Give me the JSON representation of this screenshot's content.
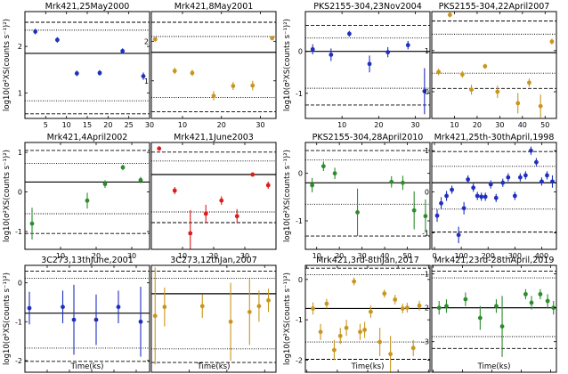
{
  "figure": {
    "xlabel": "Time(ks)",
    "ylabel": "log10(σ²XS(counts s⁻¹)²)"
  },
  "chart_data": [
    {
      "title": "Mrk421,25May2000",
      "type": "scatter",
      "color": "#1f2fbf",
      "xlim": [
        0,
        30
      ],
      "ylim": [
        0.45,
        2.75
      ],
      "xticks": [
        5,
        10,
        15,
        20,
        25,
        30
      ],
      "yticks": [
        1,
        2
      ],
      "solid": [
        1.85
      ],
      "dotted": [
        2.35,
        0.83
      ],
      "dashed": [
        2.52,
        0.55
      ],
      "points": [
        {
          "x": 2.5,
          "y": 2.32,
          "e": 0.06
        },
        {
          "x": 7.8,
          "y": 2.14,
          "e": 0.06
        },
        {
          "x": 12.5,
          "y": 1.42,
          "e": 0.06
        },
        {
          "x": 18,
          "y": 1.43,
          "e": 0.06
        },
        {
          "x": 23.5,
          "y": 1.9,
          "e": 0.06
        },
        {
          "x": 28.5,
          "y": 1.36,
          "e": 0.08
        }
      ]
    },
    {
      "title": "Mrk421,8May2001",
      "type": "scatter",
      "color": "#c8961e",
      "xlim": [
        2,
        34
      ],
      "ylim": [
        0.05,
        2.75
      ],
      "xticks": [
        10,
        20,
        30
      ],
      "yticks": [
        1,
        2
      ],
      "solid": [
        1.72
      ],
      "dotted": [
        2.12,
        0.58
      ],
      "dashed": [
        2.48,
        0.22
      ],
      "points": [
        {
          "x": 3,
          "y": 2.05,
          "e": 0.06
        },
        {
          "x": 8,
          "y": 1.25,
          "e": 0.08
        },
        {
          "x": 12.5,
          "y": 1.2,
          "e": 0.08
        },
        {
          "x": 18,
          "y": 0.62,
          "e": 0.12
        },
        {
          "x": 23,
          "y": 0.87,
          "e": 0.1
        },
        {
          "x": 28,
          "y": 0.88,
          "e": 0.12
        },
        {
          "x": 33,
          "y": 2.08,
          "e": 0.06
        }
      ]
    },
    {
      "title": "PKS2155-304,23Nov2004",
      "type": "scatter",
      "color": "#1f2fbf",
      "xlim": [
        0,
        34
      ],
      "ylim": [
        -1.6,
        0.95
      ],
      "xticks": [
        10,
        20,
        30
      ],
      "yticks": [
        -1,
        0
      ],
      "solid": [
        0.0
      ],
      "dotted": [
        0.32,
        -0.88
      ],
      "dashed": [
        0.62,
        -1.28
      ],
      "points": [
        {
          "x": 2,
          "y": 0.05,
          "e": 0.12
        },
        {
          "x": 7,
          "y": -0.08,
          "e": 0.15
        },
        {
          "x": 12,
          "y": 0.42,
          "e": 0.07
        },
        {
          "x": 17.5,
          "y": -0.3,
          "e": 0.2
        },
        {
          "x": 22.5,
          "y": -0.02,
          "e": 0.12
        },
        {
          "x": 28,
          "y": 0.15,
          "e": 0.1
        },
        {
          "x": 32.5,
          "y": -0.95,
          "e": 0.55
        }
      ]
    },
    {
      "title": "PKS2155-304,22April2007",
      "type": "scatter",
      "color": "#c8961e",
      "xlim": [
        0,
        55
      ],
      "ylim": [
        -0.65,
        1.95
      ],
      "xticks": [
        10,
        20,
        30,
        40,
        50
      ],
      "yticks": [
        0,
        1
      ],
      "solid": [
        0.95
      ],
      "dotted": [
        1.4,
        0.45
      ],
      "dashed": [
        1.72,
        0.08
      ],
      "points": [
        {
          "x": 3,
          "y": 0.48,
          "e": 0.08
        },
        {
          "x": 8,
          "y": 1.87,
          "e": 0.06
        },
        {
          "x": 13.5,
          "y": 0.42,
          "e": 0.08
        },
        {
          "x": 17.5,
          "y": 0.05,
          "e": 0.12
        },
        {
          "x": 23.5,
          "y": 0.62,
          "e": 0.06
        },
        {
          "x": 29,
          "y": 0.0,
          "e": 0.15
        },
        {
          "x": 38,
          "y": -0.28,
          "e": 0.25
        },
        {
          "x": 43,
          "y": 0.22,
          "e": 0.1
        },
        {
          "x": 48,
          "y": -0.35,
          "e": 0.28
        },
        {
          "x": 53,
          "y": 1.22,
          "e": 0.07
        }
      ]
    },
    {
      "title": "Mrk421,4April2002",
      "type": "scatter",
      "color": "#2e8b2e",
      "xlim": [
        0,
        35
      ],
      "ylim": [
        -1.45,
        1.25
      ],
      "xticks": [
        10,
        20,
        30
      ],
      "yticks": [
        -1,
        0,
        1
      ],
      "solid": [
        0.25
      ],
      "dotted": [
        0.72,
        -0.55
      ],
      "dashed": [
        1.05,
        -1.05
      ],
      "points": [
        {
          "x": 2,
          "y": -0.8,
          "e": 0.4
        },
        {
          "x": 17.5,
          "y": -0.22,
          "e": 0.2
        },
        {
          "x": 22.5,
          "y": 0.2,
          "e": 0.1
        },
        {
          "x": 27.5,
          "y": 0.62,
          "e": 0.07
        },
        {
          "x": 32.5,
          "y": 0.3,
          "e": 0.08
        }
      ]
    },
    {
      "title": "Mrk421,1June2003",
      "type": "scatter",
      "color": "#dd1c1c",
      "xlim": [
        0,
        40
      ],
      "ylim": [
        -0.55,
        2.45
      ],
      "xticks": [
        10,
        20,
        30
      ],
      "yticks": [],
      "solid": [
        1.55
      ],
      "dotted": [
        1.93,
        0.5
      ],
      "dashed": [
        2.18,
        0.2
      ],
      "points": [
        {
          "x": 2.5,
          "y": 2.28,
          "e": 0.06
        },
        {
          "x": 7.5,
          "y": 1.1,
          "e": 0.1
        },
        {
          "x": 12.5,
          "y": -0.1,
          "e": 0.65
        },
        {
          "x": 17.5,
          "y": 0.45,
          "e": 0.25
        },
        {
          "x": 22.5,
          "y": 0.82,
          "e": 0.12
        },
        {
          "x": 27.5,
          "y": 0.38,
          "e": 0.2
        },
        {
          "x": 32.5,
          "y": 1.55,
          "e": 0.06
        },
        {
          "x": 37.5,
          "y": 1.25,
          "e": 0.1
        }
      ]
    },
    {
      "title": "PKS2155-304,28April2010",
      "type": "scatter",
      "color": "#2e8b2e",
      "xlim": [
        5,
        60
      ],
      "ylim": [
        -1.6,
        0.65
      ],
      "xticks": [
        10,
        20,
        30,
        40,
        50
      ],
      "yticks": [
        -1,
        0
      ],
      "solid": [
        -0.2
      ],
      "dotted": [
        0.28,
        -0.65
      ],
      "dashed": [
        0.48,
        -1.32
      ],
      "points": [
        {
          "x": 8,
          "y": -0.25,
          "e": 0.15
        },
        {
          "x": 13,
          "y": 0.15,
          "e": 0.1
        },
        {
          "x": 18,
          "y": 0.0,
          "e": 0.12
        },
        {
          "x": 28,
          "y": -0.82,
          "e": 0.5
        },
        {
          "x": 43,
          "y": -0.18,
          "e": 0.12
        },
        {
          "x": 48,
          "y": -0.2,
          "e": 0.15
        },
        {
          "x": 53,
          "y": -0.78,
          "e": 0.4
        },
        {
          "x": 58,
          "y": -0.9,
          "e": 0.35
        }
      ]
    },
    {
      "title": "Mrk421,25th-30thApril,1998",
      "type": "scatter",
      "color": "#1f2fbf",
      "xlim": [
        -10,
        455
      ],
      "ylim": [
        -1.4,
        1.2
      ],
      "xticks": [
        0,
        100,
        200,
        300,
        400
      ],
      "yticks": [
        -1,
        0,
        1
      ],
      "solid": [
        0.22
      ],
      "dotted": [
        0.62,
        -0.42
      ],
      "dashed": [
        0.98,
        -0.98
      ],
      "points": [
        {
          "x": 10,
          "y": -0.58,
          "e": 0.15
        },
        {
          "x": 25,
          "y": -0.28,
          "e": 0.15
        },
        {
          "x": 45,
          "y": -0.1,
          "e": 0.12
        },
        {
          "x": 65,
          "y": 0.05,
          "e": 0.1
        },
        {
          "x": 90,
          "y": -1.05,
          "e": 0.2
        },
        {
          "x": 110,
          "y": -0.4,
          "e": 0.15
        },
        {
          "x": 125,
          "y": 0.3,
          "e": 0.1
        },
        {
          "x": 145,
          "y": 0.1,
          "e": 0.1
        },
        {
          "x": 160,
          "y": -0.1,
          "e": 0.1
        },
        {
          "x": 175,
          "y": -0.12,
          "e": 0.1
        },
        {
          "x": 190,
          "y": -0.12,
          "e": 0.1
        },
        {
          "x": 210,
          "y": 0.18,
          "e": 0.1
        },
        {
          "x": 230,
          "y": -0.15,
          "e": 0.1
        },
        {
          "x": 255,
          "y": 0.22,
          "e": 0.1
        },
        {
          "x": 275,
          "y": 0.35,
          "e": 0.1
        },
        {
          "x": 300,
          "y": -0.1,
          "e": 0.1
        },
        {
          "x": 320,
          "y": 0.35,
          "e": 0.1
        },
        {
          "x": 340,
          "y": 0.4,
          "e": 0.1
        },
        {
          "x": 360,
          "y": 1.0,
          "e": 0.1
        },
        {
          "x": 380,
          "y": 0.72,
          "e": 0.1
        },
        {
          "x": 400,
          "y": 0.25,
          "e": 0.1
        },
        {
          "x": 420,
          "y": 0.4,
          "e": 0.1
        },
        {
          "x": 440,
          "y": 0.25,
          "e": 0.15
        }
      ]
    },
    {
      "title": "3C273,13thJune,2001",
      "type": "scatter",
      "color": "#1f2fbf",
      "xlim": [
        30,
        86
      ],
      "ylim": [
        -2.3,
        0.45
      ],
      "xticks": [
        40,
        50,
        60,
        70,
        80
      ],
      "yticks": [
        -2,
        -1,
        0
      ],
      "solid": [
        -0.78
      ],
      "dotted": [
        0.12,
        -1.68
      ],
      "dashed": [
        0.3,
        -2.02
      ],
      "points": [
        {
          "x": 32,
          "y": -0.65,
          "e": 0.42
        },
        {
          "x": 47,
          "y": -0.62,
          "e": 0.42
        },
        {
          "x": 52,
          "y": -0.95,
          "e": 0.9
        },
        {
          "x": 62,
          "y": -0.95,
          "e": 0.65
        },
        {
          "x": 72,
          "y": -0.62,
          "e": 0.42
        },
        {
          "x": 82,
          "y": -1.0,
          "e": 0.9
        }
      ]
    },
    {
      "title": "3C273,12thJan,2007",
      "type": "scatter",
      "color": "#c8961e",
      "xlim": [
        0,
        66
      ],
      "ylim": [
        -2.3,
        0.45
      ],
      "xticks": [
        20,
        40,
        60
      ],
      "yticks": [],
      "solid": [
        -0.28
      ],
      "dotted": [
        0.12,
        -1.7
      ],
      "dashed": [
        0.3,
        -2.05
      ],
      "points": [
        {
          "x": 2,
          "y": -0.85,
          "e": 1.25
        },
        {
          "x": 7,
          "y": -0.62,
          "e": 0.5
        },
        {
          "x": 27,
          "y": -0.6,
          "e": 0.3
        },
        {
          "x": 42,
          "y": -1.0,
          "e": 1.0
        },
        {
          "x": 52,
          "y": -0.75,
          "e": 0.85
        },
        {
          "x": 57,
          "y": -0.6,
          "e": 0.4
        },
        {
          "x": 62,
          "y": -0.45,
          "e": 0.3
        }
      ]
    },
    {
      "title": "Mrk421,3rd-8thJan,2017",
      "type": "scatter",
      "color": "#c8961e",
      "xlim": [
        -5,
        405
      ],
      "ylim": [
        -2.3,
        0.35
      ],
      "xticks": [
        0,
        100,
        200,
        300,
        400
      ],
      "yticks": [
        -2,
        -1,
        0
      ],
      "solid": [
        -0.72
      ],
      "dotted": [
        0.12,
        -1.55
      ],
      "dashed": [
        0.28,
        -1.98
      ],
      "points": [
        {
          "x": 20,
          "y": -0.72,
          "e": 0.15
        },
        {
          "x": 45,
          "y": -1.3,
          "e": 0.2
        },
        {
          "x": 65,
          "y": -0.6,
          "e": 0.12
        },
        {
          "x": 90,
          "y": -1.75,
          "e": 0.25
        },
        {
          "x": 110,
          "y": -1.4,
          "e": 0.2
        },
        {
          "x": 130,
          "y": -1.2,
          "e": 0.2
        },
        {
          "x": 155,
          "y": -0.05,
          "e": 0.1
        },
        {
          "x": 175,
          "y": -1.3,
          "e": 0.2
        },
        {
          "x": 190,
          "y": -1.25,
          "e": 0.2
        },
        {
          "x": 210,
          "y": -0.8,
          "e": 0.15
        },
        {
          "x": 240,
          "y": -1.55,
          "e": 0.35
        },
        {
          "x": 255,
          "y": -0.35,
          "e": 0.1
        },
        {
          "x": 275,
          "y": -1.85,
          "e": 0.45
        },
        {
          "x": 290,
          "y": -0.5,
          "e": 0.12
        },
        {
          "x": 315,
          "y": -0.72,
          "e": 0.12
        },
        {
          "x": 330,
          "y": -0.7,
          "e": 0.12
        },
        {
          "x": 350,
          "y": -1.7,
          "e": 0.2
        },
        {
          "x": 370,
          "y": -0.65,
          "e": 0.12
        }
      ]
    },
    {
      "title": "Mrk421,23rd-28thApril,2019",
      "type": "scatter",
      "color": "#2e8b2e",
      "xlim": [
        -5,
        420
      ],
      "ylim": [
        -3.9,
        -0.75
      ],
      "xticks": [
        0,
        100,
        200,
        300,
        400
      ],
      "yticks": [
        -3,
        -2,
        -1
      ],
      "solid": [
        -2.0
      ],
      "dotted": [
        -1.12,
        -2.85
      ],
      "dashed": [
        -0.92,
        -3.2
      ],
      "points": [
        {
          "x": 20,
          "y": -2.0,
          "e": 0.2
        },
        {
          "x": 45,
          "y": -1.95,
          "e": 0.2
        },
        {
          "x": 110,
          "y": -1.75,
          "e": 0.2
        },
        {
          "x": 160,
          "y": -2.3,
          "e": 0.35
        },
        {
          "x": 215,
          "y": -1.95,
          "e": 0.2
        },
        {
          "x": 235,
          "y": -2.55,
          "e": 0.9
        },
        {
          "x": 315,
          "y": -1.6,
          "e": 0.15
        },
        {
          "x": 335,
          "y": -1.85,
          "e": 0.2
        },
        {
          "x": 365,
          "y": -1.6,
          "e": 0.15
        },
        {
          "x": 390,
          "y": -1.8,
          "e": 0.2
        },
        {
          "x": 410,
          "y": -2.0,
          "e": 0.2
        }
      ]
    }
  ]
}
